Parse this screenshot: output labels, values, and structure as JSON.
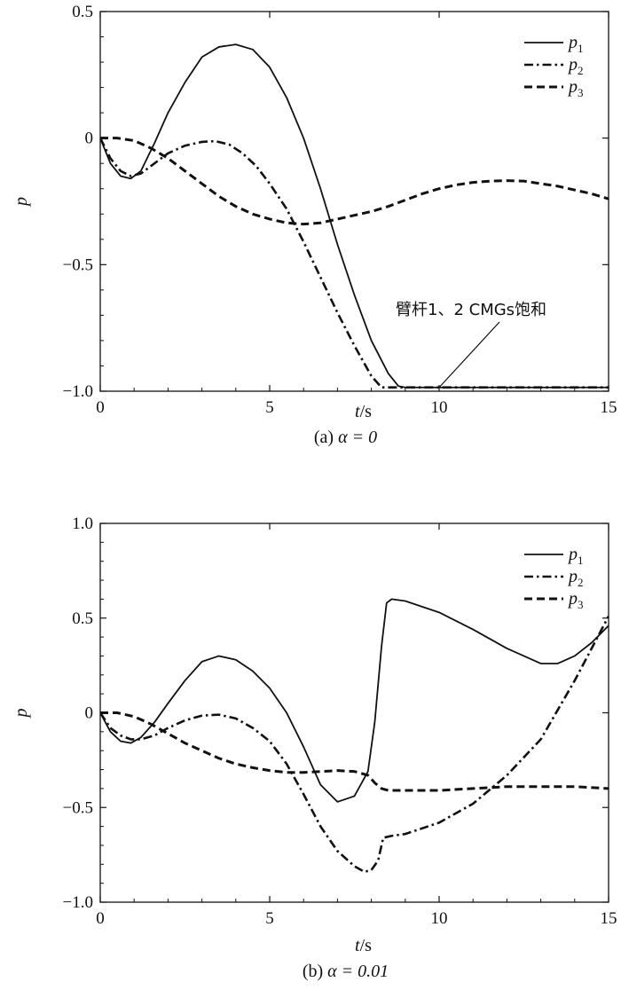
{
  "chart_data": [
    {
      "type": "line",
      "panel": "a",
      "caption_prefix": "(a)",
      "caption_alpha": "α = 0",
      "xlabel": "t",
      "xlabel_unit": "/s",
      "ylabel": "p",
      "xlim": [
        0,
        15
      ],
      "ylim": [
        -1.0,
        0.5
      ],
      "xticks": [
        "0",
        "5",
        "10",
        "15"
      ],
      "yticks": [
        "0.5",
        "0",
        "−0.5",
        "−1.0"
      ],
      "ytick_values": [
        0.5,
        0,
        -0.5,
        -1.0
      ],
      "grid": false,
      "legend_position": "top-right",
      "annotation": "臂杆1、2 CMGs饱和",
      "series": [
        {
          "name": "p1",
          "name_main": "p",
          "name_sub": "1",
          "style": "solid",
          "x": [
            0,
            0.3,
            0.6,
            0.9,
            1.2,
            1.6,
            2.0,
            2.5,
            3.0,
            3.5,
            4.0,
            4.5,
            5.0,
            5.5,
            6.0,
            6.5,
            7.0,
            7.5,
            8.0,
            8.5,
            8.8,
            9.0,
            9.5,
            10,
            11,
            12,
            13,
            14,
            15
          ],
          "y": [
            0,
            -0.1,
            -0.15,
            -0.16,
            -0.13,
            -0.02,
            0.1,
            0.22,
            0.32,
            0.36,
            0.37,
            0.35,
            0.28,
            0.16,
            0.0,
            -0.2,
            -0.42,
            -0.62,
            -0.8,
            -0.93,
            -0.98,
            -0.985,
            -0.985,
            -0.985,
            -0.985,
            -0.985,
            -0.985,
            -0.985,
            -0.985
          ]
        },
        {
          "name": "p2",
          "name_main": "p",
          "name_sub": "2",
          "style": "dashdot",
          "x": [
            0,
            0.3,
            0.6,
            0.9,
            1.2,
            1.5,
            2.0,
            2.5,
            3.0,
            3.4,
            3.8,
            4.2,
            4.6,
            5.0,
            5.5,
            6.0,
            6.5,
            7.0,
            7.5,
            8.0,
            8.3,
            8.5,
            9,
            10,
            11,
            12,
            13,
            14,
            15
          ],
          "y": [
            0,
            -0.08,
            -0.13,
            -0.15,
            -0.14,
            -0.11,
            -0.06,
            -0.03,
            -0.015,
            -0.012,
            -0.025,
            -0.06,
            -0.11,
            -0.18,
            -0.28,
            -0.41,
            -0.55,
            -0.69,
            -0.82,
            -0.94,
            -0.985,
            -0.985,
            -0.985,
            -0.985,
            -0.985,
            -0.985,
            -0.985,
            -0.985,
            -0.985
          ]
        },
        {
          "name": "p3",
          "name_main": "p",
          "name_sub": "3",
          "style": "dashed",
          "x": [
            0,
            0.5,
            1.0,
            1.5,
            2.0,
            2.5,
            3.0,
            3.5,
            4.0,
            4.5,
            5.0,
            5.5,
            6.0,
            6.5,
            7.0,
            7.5,
            8.0,
            8.5,
            9.0,
            9.5,
            10.0,
            10.5,
            11.0,
            11.5,
            12.0,
            12.5,
            13.0,
            13.5,
            14.0,
            14.5,
            15.0
          ],
          "y": [
            0,
            0.0,
            -0.01,
            -0.04,
            -0.08,
            -0.13,
            -0.18,
            -0.23,
            -0.27,
            -0.3,
            -0.32,
            -0.335,
            -0.34,
            -0.335,
            -0.32,
            -0.305,
            -0.29,
            -0.27,
            -0.245,
            -0.22,
            -0.2,
            -0.185,
            -0.175,
            -0.17,
            -0.168,
            -0.17,
            -0.18,
            -0.19,
            -0.205,
            -0.22,
            -0.24
          ]
        }
      ]
    },
    {
      "type": "line",
      "panel": "b",
      "caption_prefix": "(b)",
      "caption_alpha": "α = 0.01",
      "xlabel": "t",
      "xlabel_unit": "/s",
      "ylabel": "p",
      "xlim": [
        0,
        15
      ],
      "ylim": [
        -1.0,
        1.0
      ],
      "xticks": [
        "0",
        "5",
        "10",
        "15"
      ],
      "yticks": [
        "1.0",
        "0.5",
        "0",
        "−0.5",
        "−1.0"
      ],
      "ytick_values": [
        1.0,
        0.5,
        0,
        -0.5,
        -1.0
      ],
      "grid": false,
      "legend_position": "top-right",
      "series": [
        {
          "name": "p1",
          "name_main": "p",
          "name_sub": "1",
          "style": "solid",
          "x": [
            0,
            0.3,
            0.6,
            0.9,
            1.2,
            1.6,
            2.0,
            2.5,
            3.0,
            3.5,
            4.0,
            4.5,
            5.0,
            5.5,
            6.0,
            6.5,
            7.0,
            7.5,
            7.9,
            8.1,
            8.3,
            8.45,
            8.6,
            9.0,
            10,
            11,
            12,
            13,
            13.5,
            14,
            14.5,
            15
          ],
          "y": [
            0,
            -0.1,
            -0.15,
            -0.16,
            -0.13,
            -0.05,
            0.05,
            0.17,
            0.27,
            0.3,
            0.28,
            0.22,
            0.13,
            0.0,
            -0.18,
            -0.38,
            -0.47,
            -0.44,
            -0.31,
            -0.05,
            0.35,
            0.58,
            0.6,
            0.59,
            0.53,
            0.44,
            0.34,
            0.26,
            0.26,
            0.3,
            0.37,
            0.46
          ]
        },
        {
          "name": "p2",
          "name_main": "p",
          "name_sub": "2",
          "style": "dashdot",
          "x": [
            0,
            0.3,
            0.6,
            0.9,
            1.2,
            1.6,
            2.0,
            2.5,
            3.0,
            3.5,
            4.0,
            4.5,
            5.0,
            5.5,
            6.0,
            6.5,
            7.0,
            7.5,
            7.8,
            8.0,
            8.2,
            8.35,
            8.6,
            9.0,
            10,
            11,
            12,
            13,
            14,
            15
          ],
          "y": [
            0,
            -0.08,
            -0.12,
            -0.14,
            -0.14,
            -0.12,
            -0.08,
            -0.04,
            -0.015,
            -0.01,
            -0.03,
            -0.08,
            -0.15,
            -0.27,
            -0.43,
            -0.6,
            -0.73,
            -0.81,
            -0.84,
            -0.83,
            -0.78,
            -0.66,
            -0.65,
            -0.64,
            -0.58,
            -0.48,
            -0.33,
            -0.14,
            0.17,
            0.51
          ]
        },
        {
          "name": "p3",
          "name_main": "p",
          "name_sub": "3",
          "style": "dashed",
          "x": [
            0,
            0.5,
            1.0,
            1.5,
            2.0,
            2.5,
            3.0,
            3.5,
            4.0,
            4.5,
            5.0,
            5.5,
            6.0,
            6.5,
            7.0,
            7.5,
            7.9,
            8.1,
            8.3,
            8.5,
            9.0,
            10,
            11,
            12,
            13,
            14,
            15
          ],
          "y": [
            0,
            0.0,
            -0.02,
            -0.06,
            -0.11,
            -0.16,
            -0.2,
            -0.24,
            -0.27,
            -0.29,
            -0.305,
            -0.315,
            -0.315,
            -0.31,
            -0.305,
            -0.31,
            -0.33,
            -0.37,
            -0.4,
            -0.41,
            -0.41,
            -0.41,
            -0.4,
            -0.39,
            -0.39,
            -0.39,
            -0.4
          ]
        }
      ]
    }
  ]
}
